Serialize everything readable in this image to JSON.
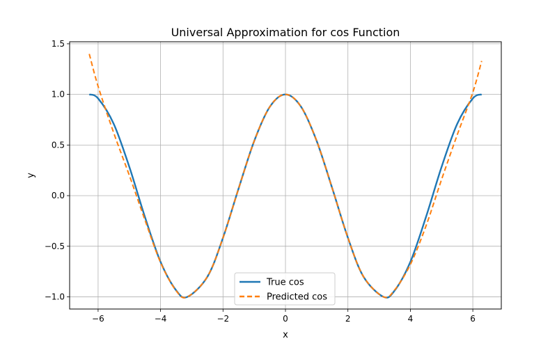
{
  "chart_data": {
    "type": "line",
    "title": "Universal Approximation for cos Function",
    "xlabel": "x",
    "ylabel": "y",
    "xlim": [
      -6.912,
      6.912
    ],
    "ylim": [
      -1.12,
      1.52
    ],
    "xticks": [
      -6,
      -4,
      -2,
      0,
      2,
      4,
      6
    ],
    "yticks": [
      -1.0,
      -0.5,
      0.0,
      0.5,
      1.0,
      1.5
    ],
    "ytick_labels": [
      "−1.0",
      "−0.5",
      "0.0",
      "0.5",
      "1.0",
      "1.5"
    ],
    "xtick_labels": [
      "−6",
      "−4",
      "−2",
      "0",
      "2",
      "4",
      "6"
    ],
    "grid": true,
    "legend_position": "bottom-center",
    "series": [
      {
        "name": "True cos",
        "color": "#1f77b4",
        "style": "solid",
        "x": [
          -6.283,
          -6.0,
          -5.5,
          -5.0,
          -4.5,
          -4.0,
          -3.5,
          -3.1416,
          -2.5,
          -2.0,
          -1.5,
          -1.0,
          -0.5,
          0.0,
          0.5,
          1.0,
          1.5,
          2.0,
          2.5,
          3.1416,
          3.5,
          4.0,
          4.5,
          5.0,
          5.5,
          6.0,
          6.283
        ],
        "y": [
          1.0,
          0.96,
          0.709,
          0.284,
          -0.211,
          -0.654,
          -0.936,
          -1.0,
          -0.801,
          -0.416,
          0.071,
          0.54,
          0.878,
          1.0,
          0.878,
          0.54,
          0.071,
          -0.416,
          -0.801,
          -1.0,
          -0.936,
          -0.654,
          -0.211,
          0.284,
          0.709,
          0.96,
          1.0
        ]
      },
      {
        "name": "Predicted cos",
        "color": "#ff7f0e",
        "style": "dashed",
        "x": [
          -6.283,
          -6.0,
          -5.5,
          -5.0,
          -4.5,
          -4.0,
          -3.5,
          -3.1416,
          -2.5,
          -2.0,
          -1.5,
          -1.0,
          -0.5,
          0.0,
          0.5,
          1.0,
          1.5,
          2.0,
          2.5,
          3.1416,
          3.5,
          4.0,
          4.5,
          5.0,
          5.5,
          6.0,
          6.283
        ],
        "y": [
          1.4,
          1.08,
          0.62,
          0.2,
          -0.24,
          -0.66,
          -0.94,
          -1.0,
          -0.8,
          -0.416,
          0.07,
          0.54,
          0.878,
          1.0,
          0.878,
          0.54,
          0.07,
          -0.416,
          -0.8,
          -1.0,
          -0.93,
          -0.68,
          -0.3,
          0.16,
          0.6,
          1.02,
          1.33
        ]
      }
    ]
  }
}
